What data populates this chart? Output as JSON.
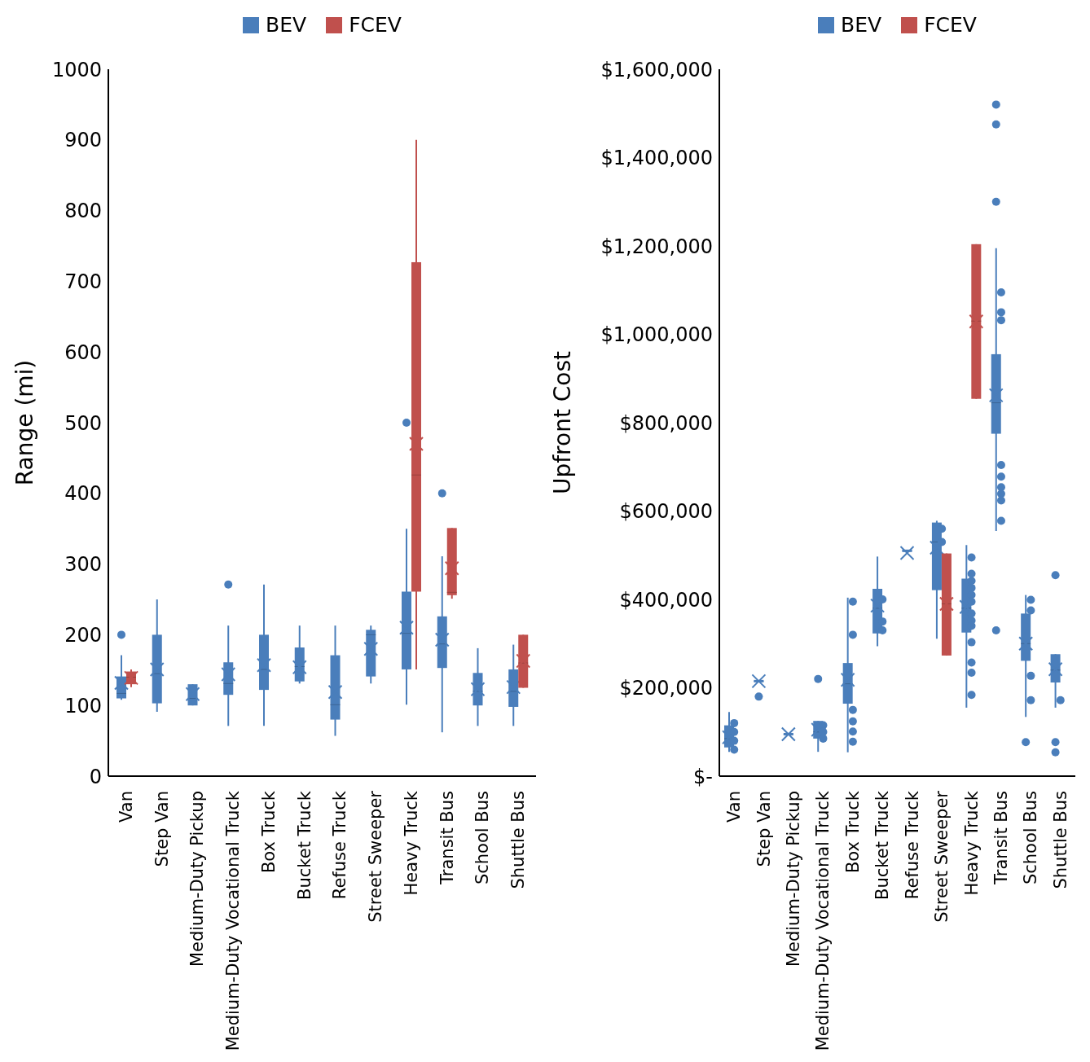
{
  "chart_data": [
    {
      "type": "box",
      "ylabel": "Range (mi)",
      "ylim": [
        0,
        1000
      ],
      "yticks": [
        0,
        100,
        200,
        300,
        400,
        500,
        600,
        700,
        800,
        900,
        1000
      ],
      "legend": "top",
      "grid": false,
      "categories": [
        "Van",
        "Step Van",
        "Medium-Duty Pickup",
        "Medium-Duty Vocational Truck",
        "Box Truck",
        "Bucket Truck",
        "Refuse Truck",
        "Street Sweeper",
        "Heavy Truck",
        "Transit Bus",
        "School Bus",
        "Shuttle Bus"
      ],
      "series": [
        {
          "name": "BEV",
          "color": "#4a7ebb",
          "boxes": [
            {
              "low": 108,
              "q1": 110,
              "median": 117,
              "q3": 141,
              "high": 171,
              "mean": 132,
              "outliers": [
                200
              ]
            },
            {
              "low": 91,
              "q1": 103,
              "median": 145,
              "q3": 200,
              "high": 250,
              "mean": 151
            },
            {
              "low": 100,
              "q1": 100,
              "median": 110,
              "q3": 130,
              "high": 130,
              "mean": 116
            },
            {
              "low": 71,
              "q1": 115,
              "median": 131,
              "q3": 161,
              "high": 213,
              "mean": 144,
              "outliers": [
                271
              ]
            },
            {
              "low": 71,
              "q1": 122,
              "median": 151,
              "q3": 200,
              "high": 271,
              "mean": 157
            },
            {
              "low": 131,
              "q1": 134,
              "median": 155,
              "q3": 182,
              "high": 213,
              "mean": 154
            },
            {
              "low": 57,
              "q1": 80,
              "median": 101,
              "q3": 171,
              "high": 213,
              "mean": 119
            },
            {
              "low": 131,
              "q1": 141,
              "median": 200,
              "q3": 207,
              "high": 213,
              "mean": 180
            },
            {
              "low": 101,
              "q1": 151,
              "median": 202,
              "q3": 261,
              "high": 350,
              "mean": 210,
              "outliers": [
                500
              ]
            },
            {
              "low": 62,
              "q1": 153,
              "median": 187,
              "q3": 226,
              "high": 311,
              "mean": 193,
              "outliers": [
                400
              ]
            },
            {
              "low": 71,
              "q1": 100,
              "median": 120,
              "q3": 146,
              "high": 181,
              "mean": 123
            },
            {
              "low": 71,
              "q1": 98,
              "median": 120,
              "q3": 151,
              "high": 186,
              "mean": 126
            }
          ]
        },
        {
          "name": "FCEV",
          "color": "#c0504d",
          "boxes": [
            {
              "low": 126,
              "q1": 130,
              "median": 140,
              "q3": 148,
              "high": 151,
              "mean": 139
            },
            null,
            null,
            null,
            null,
            null,
            null,
            null,
            {
              "low": 151,
              "q1": 261,
              "median": 426,
              "q3": 727,
              "high": 900,
              "mean": 470
            },
            {
              "low": 251,
              "q1": 256,
              "median": 260,
              "q3": 351,
              "high": 351,
              "mean": 294
            },
            null,
            {
              "low": 125,
              "q1": 125,
              "median": 160,
              "q3": 200,
              "high": 200,
              "mean": 163
            }
          ]
        }
      ]
    },
    {
      "type": "box",
      "ylabel": "Upfront Cost",
      "ylim": [
        0,
        1600000
      ],
      "yticks": [
        {
          "value": 0,
          "label": "$-"
        },
        {
          "value": 200000,
          "label": "$200,000"
        },
        {
          "value": 400000,
          "label": "$400,000"
        },
        {
          "value": 600000,
          "label": "$600,000"
        },
        {
          "value": 800000,
          "label": "$800,000"
        },
        {
          "value": 1000000,
          "label": "$1,000,000"
        },
        {
          "value": 1200000,
          "label": "$1,200,000"
        },
        {
          "value": 1400000,
          "label": "$1,400,000"
        },
        {
          "value": 1600000,
          "label": "$1,600,000"
        }
      ],
      "legend": "top",
      "grid": false,
      "categories": [
        "Van",
        "Step Van",
        "Medium-Duty Pickup",
        "Medium-Duty Vocational Truck",
        "Box Truck",
        "Bucket Truck",
        "Refuse Truck",
        "Street Sweeper",
        "Heavy Truck",
        "Transit Bus",
        "School Bus",
        "Shuttle Bus"
      ],
      "series": [
        {
          "name": "BEV",
          "color": "#4a7ebb",
          "boxes": [
            {
              "low": 55000,
              "q1": 65000,
              "median": 85000,
              "q3": 115000,
              "high": 145000,
              "mean": 88000
            },
            {
              "low": 215000,
              "q1": 215000,
              "median": 215000,
              "q3": 215000,
              "high": 215000,
              "mean": 215000,
              "outliers": [
                180000
              ]
            },
            {
              "low": 95000,
              "q1": 95000,
              "median": 95000,
              "q3": 95000,
              "high": 95000,
              "mean": 95000
            },
            {
              "low": 55000,
              "q1": 85000,
              "median": 100000,
              "q3": 125000,
              "high": 125000,
              "mean": 105000,
              "outliers": [
                220000
              ]
            },
            {
              "low": 54000,
              "q1": 164000,
              "median": 209000,
              "q3": 256000,
              "high": 404000,
              "mean": 218000
            },
            {
              "low": 294000,
              "q1": 323000,
              "median": 380000,
              "q3": 424000,
              "high": 497000,
              "mean": 386000
            },
            {
              "low": 510000,
              "q1": 510000,
              "median": 510000,
              "q3": 510000,
              "high": 510000,
              "mean": 505000
            },
            {
              "low": 311000,
              "q1": 421000,
              "median": 530000,
              "q3": 574000,
              "high": 578000,
              "mean": 517000
            },
            {
              "low": 155000,
              "q1": 325000,
              "median": 380000,
              "q3": 447000,
              "high": 523000,
              "mean": 383000
            },
            {
              "low": 555000,
              "q1": 775000,
              "median": 845000,
              "q3": 955000,
              "high": 1195000,
              "mean": 862000,
              "outliers": [
                1520000,
                1475000,
                1300000,
                330000
              ]
            },
            {
              "low": 134000,
              "q1": 261000,
              "median": 300000,
              "q3": 368000,
              "high": 410000,
              "mean": 300000,
              "outliers": [
                77000
              ]
            },
            {
              "low": 155000,
              "q1": 212000,
              "median": 240000,
              "q3": 276000,
              "high": 276000,
              "mean": 242000,
              "outliers": [
                455000,
                77000,
                54000
              ]
            }
          ]
        },
        {
          "name": "FCEV",
          "color": "#c0504d",
          "boxes": [
            null,
            null,
            null,
            null,
            null,
            null,
            null,
            {
              "low": 273000,
              "q1": 273000,
              "median": 390000,
              "q3": 504000,
              "high": 504000,
              "mean": 390000
            },
            {
              "low": 854000,
              "q1": 854000,
              "median": 1030000,
              "q3": 1204000,
              "high": 1204000,
              "mean": 1029000
            },
            null,
            null,
            null
          ]
        },
        {
          "type": "scatter",
          "color": "#4a7ebb",
          "x": [
            "Van",
            "Van",
            "Van",
            "Van",
            "Medium-Duty Vocational Truck",
            "Medium-Duty Vocational Truck",
            "Medium-Duty Vocational Truck",
            "Box Truck",
            "Box Truck",
            "Box Truck",
            "Box Truck",
            "Box Truck",
            "Box Truck",
            "Bucket Truck",
            "Bucket Truck",
            "Bucket Truck",
            "Street Sweeper",
            "Street Sweeper",
            "Heavy Truck",
            "Heavy Truck",
            "Heavy Truck",
            "Heavy Truck",
            "Heavy Truck",
            "Heavy Truck",
            "Heavy Truck",
            "Heavy Truck",
            "Heavy Truck",
            "Heavy Truck",
            "Heavy Truck",
            "Heavy Truck",
            "Heavy Truck",
            "Transit Bus",
            "Transit Bus",
            "Transit Bus",
            "Transit Bus",
            "Transit Bus",
            "Transit Bus",
            "Transit Bus",
            "Transit Bus",
            "Transit Bus",
            "School Bus",
            "School Bus",
            "School Bus",
            "School Bus",
            "Shuttle Bus"
          ],
          "values": [
            60000,
            80000,
            100000,
            120000,
            115000,
            100000,
            85000,
            395000,
            320000,
            150000,
            124000,
            101000,
            78000,
            400000,
            350000,
            330000,
            560000,
            530000,
            495000,
            458000,
            442000,
            426000,
            410000,
            395000,
            368000,
            352000,
            340000,
            303000,
            257000,
            234000,
            184000,
            1095000,
            1050000,
            1032000,
            704000,
            678000,
            654000,
            639000,
            624000,
            578000,
            399000,
            375000,
            227000,
            172000,
            172000
          ]
        }
      ]
    }
  ]
}
